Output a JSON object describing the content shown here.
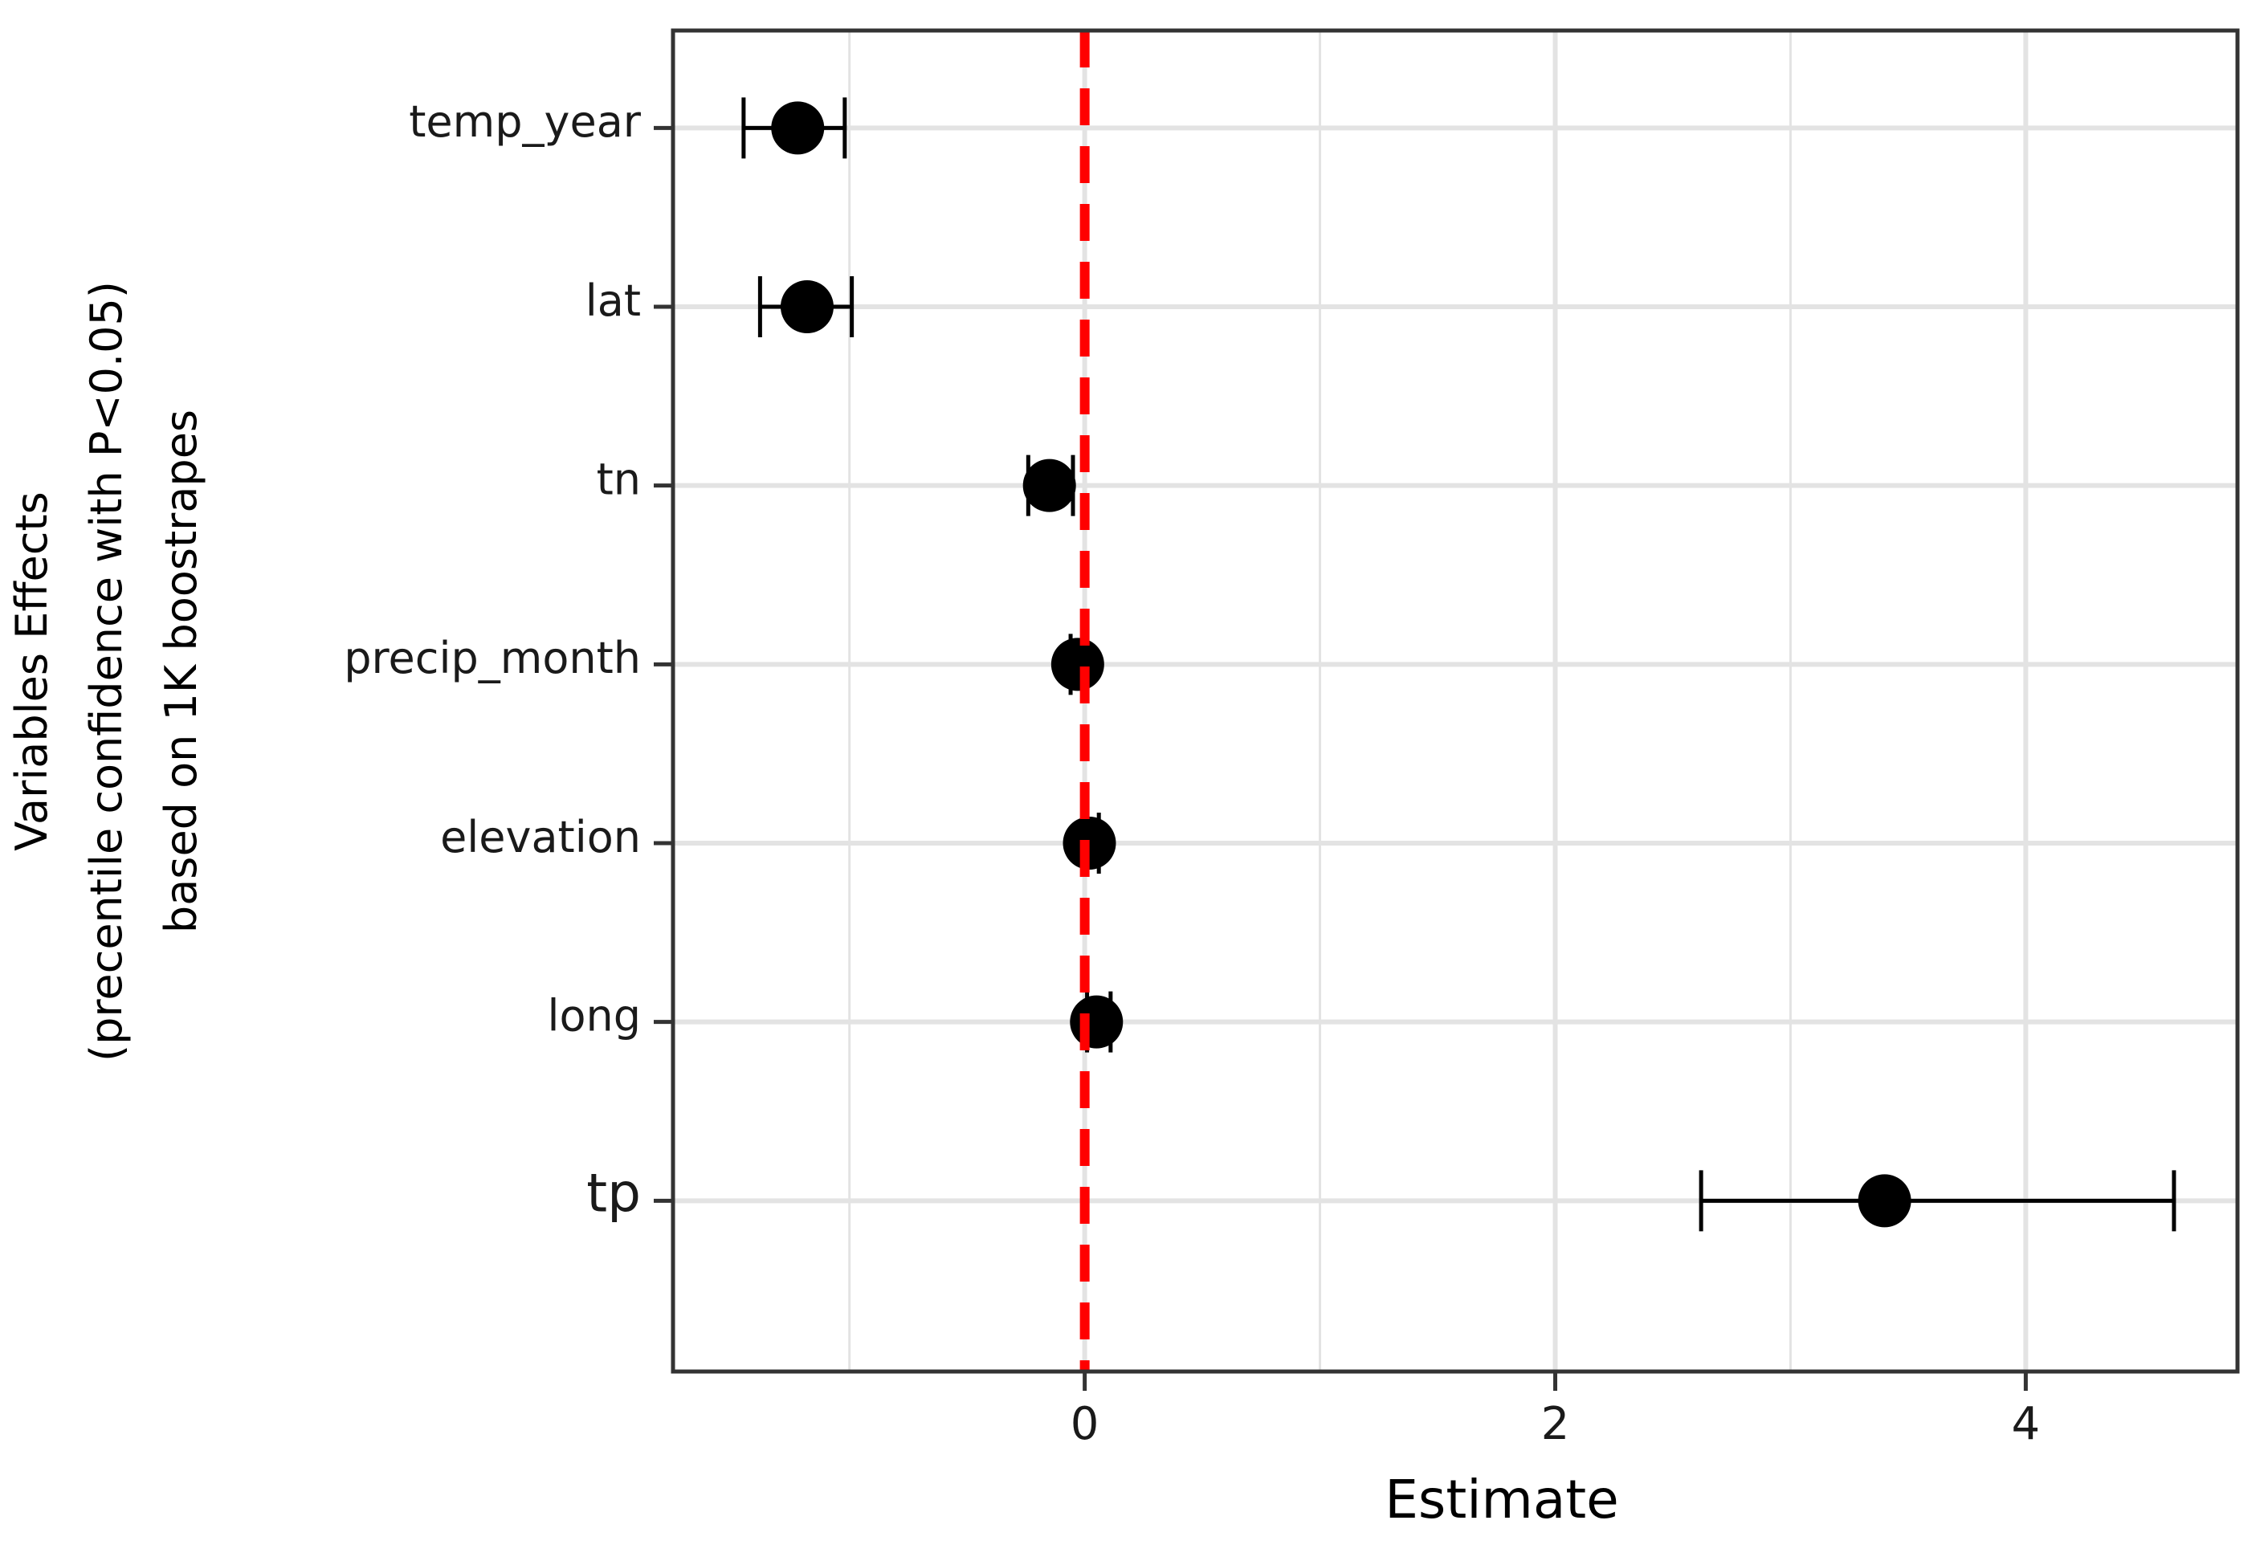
{
  "chart_data": {
    "type": "scatter",
    "subtype": "coefficient-plot-with-error-bars",
    "xlabel": "Estimate",
    "ylabel_lines": [
      "Variables Effects",
      "(precentile confidence with P<0.05)",
      "based on 1K boostrapes"
    ],
    "xlim": [
      -1.75,
      4.9
    ],
    "x_ticks": [
      0,
      2,
      4
    ],
    "x_tick_labels": [
      "0",
      "2",
      "4"
    ],
    "grid": true,
    "reference_line": {
      "x": 0,
      "color": "#ff0000",
      "style": "dashed"
    },
    "categories": [
      "temp_year",
      "lat",
      "tn",
      "precip_month",
      "elevation",
      "long",
      "tp"
    ],
    "estimates": [
      -1.22,
      -1.18,
      -0.15,
      -0.03,
      0.02,
      0.05,
      3.4
    ],
    "ci_low": [
      -1.45,
      -1.38,
      -0.24,
      -0.06,
      -0.01,
      0.01,
      2.62
    ],
    "ci_high": [
      -1.02,
      -0.99,
      -0.05,
      0.01,
      0.06,
      0.11,
      4.63
    ]
  },
  "colors": {
    "point": "#000000",
    "grid": "#e3e3e3",
    "reference": "#ff0000",
    "panel_border": "#333333"
  }
}
